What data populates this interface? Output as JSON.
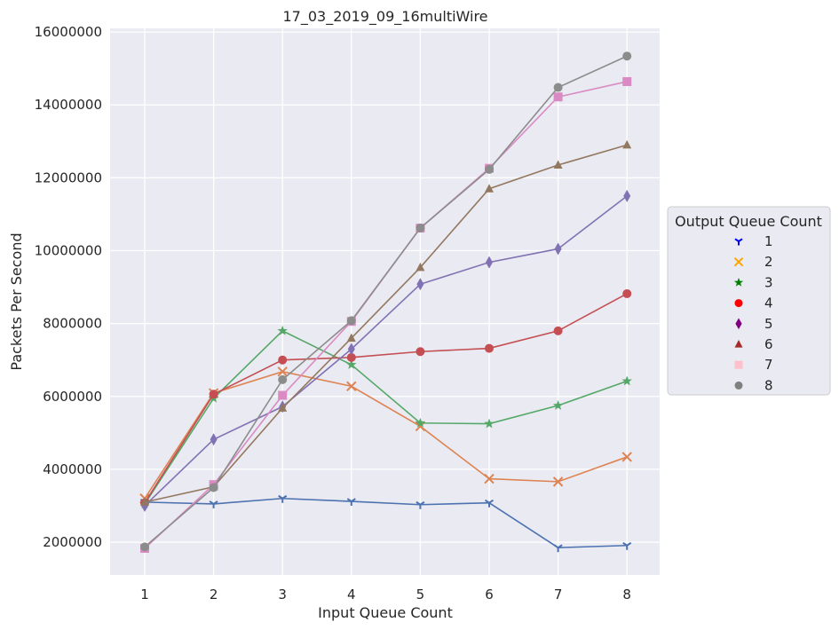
{
  "chart_data": {
    "type": "line",
    "title": "17_03_2019_09_16multiWire",
    "xlabel": "Input Queue Count",
    "ylabel": "Packets Per Second",
    "categories": [
      "1",
      "2",
      "3",
      "4",
      "5",
      "6",
      "7",
      "8"
    ],
    "ylim": [
      1100000,
      16100000
    ],
    "yticks": [
      "2000000",
      "4000000",
      "6000000",
      "8000000",
      "10000000",
      "12000000",
      "14000000",
      "16000000"
    ],
    "grid": true,
    "legend": {
      "title": "Output Queue Count",
      "placement": "center-right"
    },
    "series": [
      {
        "name": "1",
        "color": "#4c72b0",
        "legend_color": "#0000ff",
        "marker": "tri-down",
        "values": [
          3100000,
          3050000,
          3200000,
          3120000,
          3030000,
          3080000,
          1850000,
          1910000
        ]
      },
      {
        "name": "2",
        "color": "#dd8452",
        "legend_color": "#ffa500",
        "marker": "x",
        "values": [
          3200000,
          6090000,
          6680000,
          6280000,
          5180000,
          3740000,
          3660000,
          4340000
        ]
      },
      {
        "name": "3",
        "color": "#55a868",
        "legend_color": "#008000",
        "marker": "star",
        "values": [
          3050000,
          5950000,
          7800000,
          6870000,
          5270000,
          5250000,
          5750000,
          6420000
        ]
      },
      {
        "name": "4",
        "color": "#c44e52",
        "legend_color": "#ff0000",
        "marker": "circle",
        "values": [
          3080000,
          6060000,
          7000000,
          7070000,
          7230000,
          7320000,
          7800000,
          8820000
        ]
      },
      {
        "name": "5",
        "color": "#8172b3",
        "legend_color": "#800080",
        "marker": "diamond",
        "values": [
          3000000,
          4820000,
          5720000,
          7300000,
          9080000,
          9680000,
          10050000,
          11500000
        ]
      },
      {
        "name": "6",
        "color": "#937860",
        "legend_color": "#a52a2a",
        "marker": "triangle",
        "values": [
          3100000,
          3520000,
          5680000,
          7600000,
          9540000,
          11700000,
          12350000,
          12900000
        ]
      },
      {
        "name": "7",
        "color": "#da8bc3",
        "legend_color": "#ffc0cb",
        "marker": "square",
        "values": [
          1830000,
          3580000,
          6030000,
          8060000,
          10620000,
          12260000,
          14220000,
          14640000
        ]
      },
      {
        "name": "8",
        "color": "#8c8c8c",
        "legend_color": "#808080",
        "marker": "circle",
        "values": [
          1870000,
          3500000,
          6460000,
          8080000,
          10620000,
          12230000,
          14480000,
          15340000
        ]
      }
    ]
  }
}
